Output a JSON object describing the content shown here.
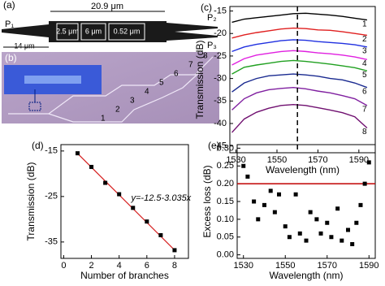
{
  "panel_a": {
    "label": "(a)",
    "width": "20.9 μm",
    "left_length": "14 μm",
    "sections": [
      "2.5 μm",
      "6 μm",
      "0.52 μm"
    ],
    "ports": [
      "P₁",
      "P₂",
      "P₃"
    ]
  },
  "panel_b": {
    "label": "(b)",
    "branches": [
      "1",
      "2",
      "3",
      "4",
      "5",
      "6",
      "7",
      "8"
    ]
  },
  "chart_data": [
    {
      "type": "line",
      "panel_label": "(c)",
      "x_label": "Wavelength (nm)",
      "y_label": "Transmission (dB)",
      "x": [
        1528,
        1534,
        1540,
        1546,
        1552,
        1558,
        1564,
        1570,
        1576,
        1582,
        1588,
        1594
      ],
      "series": [
        {
          "name": "1",
          "color": "#000000",
          "values": [
            -17.5,
            -16.8,
            -16.5,
            -16.2,
            -15.9,
            -15.6,
            -15.5,
            -15.7,
            -15.9,
            -16.2,
            -16.6,
            -17.0
          ]
        },
        {
          "name": "2",
          "color": "#e02020",
          "values": [
            -21,
            -20.3,
            -19.8,
            -19.4,
            -19,
            -18.8,
            -18.9,
            -19.2,
            -19.3,
            -19.6,
            -20,
            -20.4
          ]
        },
        {
          "name": "3",
          "color": "#2030e0",
          "values": [
            -24,
            -23,
            -22.4,
            -22,
            -21.6,
            -21.4,
            -21.5,
            -21.8,
            -22,
            -22.2,
            -22.5,
            -23
          ]
        },
        {
          "name": "4",
          "color": "#e020e0",
          "values": [
            -27,
            -25.6,
            -24.8,
            -24.4,
            -24,
            -23.8,
            -24,
            -24.3,
            -24.5,
            -24.8,
            -25.2,
            -25.8
          ]
        },
        {
          "name": "5",
          "color": "#20a020",
          "values": [
            -29,
            -27.5,
            -27,
            -26.6,
            -26.2,
            -26,
            -26.2,
            -26.5,
            -26.8,
            -27.2,
            -27.6,
            -28.3
          ]
        },
        {
          "name": "6",
          "color": "#1a2a90",
          "values": [
            -33,
            -31,
            -30,
            -29.4,
            -29.2,
            -29,
            -29.2,
            -29.5,
            -30,
            -30.3,
            -31,
            -32
          ]
        },
        {
          "name": "7",
          "color": "#8020a0",
          "values": [
            -37,
            -34.5,
            -33.2,
            -32.5,
            -32.2,
            -32,
            -32.3,
            -32.8,
            -33.2,
            -33.8,
            -34.5,
            -36
          ]
        },
        {
          "name": "8",
          "color": "#701070",
          "values": [
            -42,
            -39,
            -37.5,
            -36.6,
            -36,
            -35.8,
            -36,
            -36.5,
            -37,
            -37.6,
            -38.5,
            -41
          ]
        }
      ],
      "xlim": [
        1527,
        1598
      ],
      "xticks": [
        1530,
        1550,
        1570,
        1590
      ],
      "ylim": [
        -46.5,
        -14
      ],
      "yticks": [
        -15,
        -20,
        -25,
        -30,
        -35,
        -40,
        -45
      ],
      "vline": 1560
    },
    {
      "type": "scatter",
      "panel_label": "(d)",
      "x_label": "Number of branches",
      "y_label": "Transmission (dB)",
      "x": [
        1,
        2,
        3,
        4,
        5,
        6,
        7,
        8
      ],
      "values": [
        -15.5,
        -18.5,
        -22,
        -24.5,
        -27.5,
        -30.5,
        -33.5,
        -36.8
      ],
      "color": "#000000",
      "fit": {
        "intercept": -12.5,
        "slope": -3.035,
        "color": "#d62020",
        "label": "y=-12.5-3.035x"
      },
      "xlim": [
        -0.2,
        9
      ],
      "xticks": [
        0,
        2,
        4,
        6,
        8
      ],
      "ylim": [
        -38.6,
        -13.6
      ],
      "yticks": [
        -15,
        -25,
        -35
      ]
    },
    {
      "type": "scatter",
      "panel_label": "(e)",
      "x_label": "Wavelength (nm)",
      "y_label": "Excess loss (dB)",
      "x": [
        1530,
        1532,
        1535,
        1537,
        1540,
        1543,
        1545,
        1547,
        1550,
        1552,
        1555,
        1557,
        1560,
        1562,
        1565,
        1567,
        1570,
        1572,
        1575,
        1577,
        1580,
        1582,
        1584,
        1586,
        1588,
        1590
      ],
      "values": [
        0.25,
        0.22,
        0.15,
        0.1,
        0.14,
        0.18,
        0.12,
        0.17,
        0.08,
        0.05,
        0.17,
        0.06,
        0.04,
        0.12,
        0.1,
        0.06,
        0.09,
        0.05,
        0.13,
        0.04,
        0.07,
        0.03,
        0.09,
        0.14,
        0.2,
        0.26
      ],
      "color": "#000000",
      "hline": 0.2,
      "hline_color": "#c00000",
      "xlim": [
        1527,
        1593
      ],
      "xticks": [
        1530,
        1550,
        1570,
        1590
      ],
      "ylim": [
        -0.01,
        0.31
      ],
      "yticks": [
        {
          "value": 0,
          "label": "0.00"
        },
        {
          "value": 0.05,
          "label": "0.05"
        },
        {
          "value": 0.1,
          "label": "0.10"
        },
        {
          "value": 0.15,
          "label": "0.15"
        },
        {
          "value": 0.2,
          "label": "0.20"
        },
        {
          "value": 0.25,
          "label": "0.25"
        },
        {
          "value": 0.3,
          "label": "0.30"
        }
      ]
    }
  ]
}
